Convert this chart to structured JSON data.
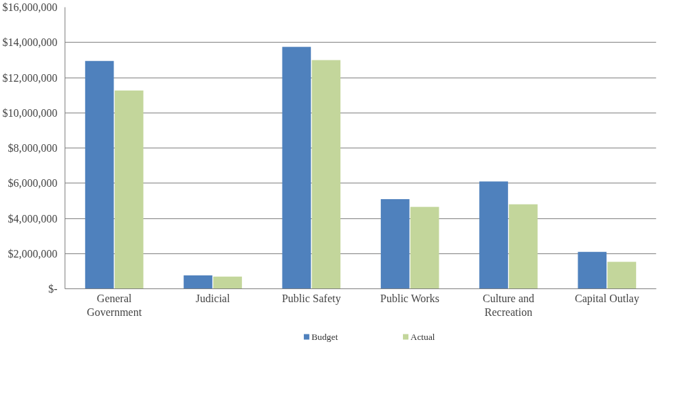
{
  "chart_data": {
    "type": "bar",
    "categories": [
      "General Government",
      "Judicial",
      "Public Safety",
      "Public Works",
      "Culture and Recreation",
      "Capital Outlay"
    ],
    "series": [
      {
        "name": "Budget",
        "color": "#4f81bd",
        "values": [
          12950000,
          760000,
          13750000,
          5090000,
          6100000,
          2100000
        ]
      },
      {
        "name": "Actual",
        "color": "#c3d69b",
        "values": [
          11270000,
          690000,
          13000000,
          4650000,
          4800000,
          1530000
        ]
      }
    ],
    "ylim": [
      0,
      16000000
    ],
    "yticks": [
      {
        "value": 0,
        "label": "$-"
      },
      {
        "value": 2000000,
        "label": "$2,000,000"
      },
      {
        "value": 4000000,
        "label": "$4,000,000"
      },
      {
        "value": 6000000,
        "label": "$6,000,000"
      },
      {
        "value": 8000000,
        "label": "$8,000,000"
      },
      {
        "value": 10000000,
        "label": "$10,000,000"
      },
      {
        "value": 12000000,
        "label": "$12,000,000"
      },
      {
        "value": 14000000,
        "label": "$14,000,000"
      },
      {
        "value": 16000000,
        "label": "$16,000,000"
      }
    ],
    "grid": "y",
    "legend": "bottom"
  }
}
